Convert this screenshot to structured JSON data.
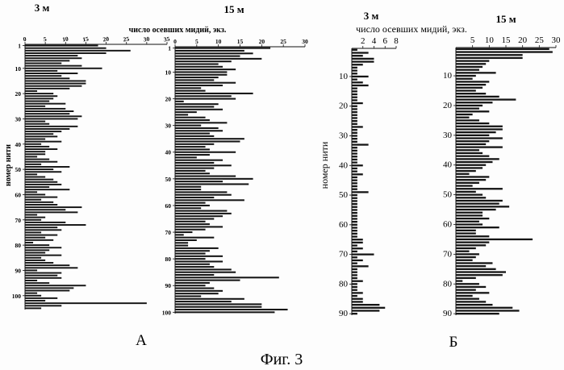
{
  "figure": {
    "caption": "Фиг. 3",
    "groups": [
      {
        "letter": "А",
        "xlabel": "число осевших мидий, экз.",
        "ylabel": "номер нити"
      },
      {
        "letter": "Б",
        "xlabel": "число осевших мидий, экз.",
        "ylabel": "номер нити"
      }
    ]
  },
  "chart_data": [
    {
      "type": "bar",
      "orientation": "horizontal",
      "group": "А",
      "title": "3 м",
      "xlabel": "число осевших мидий, экз.",
      "ylabel": "номер нити",
      "xlim": [
        0,
        35
      ],
      "xticks": [
        0,
        5,
        10,
        15,
        20,
        25,
        30,
        35
      ],
      "ylim": [
        1,
        105
      ],
      "yticks": [
        1,
        10,
        20,
        30,
        40,
        50,
        60,
        70,
        80,
        90,
        100
      ],
      "values": [
        18,
        20,
        26,
        20,
        13,
        14,
        11,
        9,
        14,
        19,
        8,
        13,
        9,
        11,
        15,
        15,
        14,
        11,
        3,
        7,
        8,
        7,
        6,
        10,
        5,
        10,
        12,
        11,
        14,
        13,
        5,
        6,
        13,
        11,
        9,
        7,
        8,
        5,
        9,
        4,
        6,
        8,
        5,
        5,
        3,
        6,
        8,
        4,
        11,
        7,
        9,
        3,
        5,
        7,
        8,
        9,
        6,
        11,
        3,
        5,
        8,
        4,
        7,
        8,
        14,
        10,
        13,
        3,
        5,
        4,
        10,
        15,
        8,
        9,
        4,
        8,
        5,
        7,
        2,
        6,
        9,
        6,
        5,
        9,
        4,
        5,
        7,
        11,
        13,
        3,
        9,
        8,
        9,
        3,
        6,
        15,
        12,
        11,
        3,
        4,
        8,
        5,
        30,
        9,
        4
      ]
    },
    {
      "type": "bar",
      "orientation": "horizontal",
      "group": "А",
      "title": "15 м",
      "xlabel": "",
      "ylabel": "",
      "xlim": [
        0,
        30
      ],
      "xticks": [
        0,
        5,
        10,
        15,
        20,
        25,
        30
      ],
      "ylim": [
        1,
        100
      ],
      "yticks": [
        1,
        10,
        20,
        30,
        40,
        50,
        60,
        70,
        80,
        90,
        100
      ],
      "values": [
        22,
        16,
        18,
        15,
        20,
        13,
        10,
        11,
        14,
        12,
        12,
        10,
        9,
        14,
        11,
        6,
        7,
        18,
        13,
        14,
        2,
        10,
        9,
        11,
        5,
        3,
        7,
        8,
        12,
        6,
        10,
        11,
        8,
        9,
        16,
        15,
        9,
        7,
        8,
        14,
        8,
        5,
        11,
        9,
        13,
        9,
        7,
        8,
        14,
        18,
        11,
        17,
        6,
        6,
        12,
        13,
        9,
        16,
        7,
        8,
        6,
        12,
        13,
        11,
        9,
        7,
        8,
        11,
        7,
        4,
        2,
        9,
        5,
        3,
        3,
        10,
        8,
        7,
        11,
        7,
        11,
        8,
        9,
        13,
        14,
        9,
        24,
        15,
        8,
        7,
        9,
        11,
        10,
        6,
        16,
        13,
        20,
        20,
        26,
        23
      ]
    },
    {
      "type": "bar",
      "orientation": "horizontal",
      "group": "Б",
      "title": "3 м",
      "xlabel": "",
      "ylabel": "",
      "xlim": [
        0,
        8
      ],
      "xticks": [
        2,
        4,
        6,
        8
      ],
      "ylim": [
        1,
        90
      ],
      "yticks": [
        10,
        20,
        30,
        40,
        50,
        60,
        70,
        80,
        90
      ],
      "values": [
        1,
        3,
        2,
        4,
        4,
        2,
        1,
        1,
        1,
        3,
        1,
        2,
        3,
        1,
        1,
        1,
        1,
        1,
        2,
        1,
        1,
        1,
        1,
        1,
        1,
        1,
        2,
        1,
        1,
        1,
        1,
        1,
        3,
        1,
        1,
        1,
        1,
        1,
        1,
        2,
        1,
        1,
        2,
        1,
        1,
        1,
        1,
        1,
        3,
        1,
        1,
        1,
        1,
        1,
        1,
        1,
        1,
        1,
        1,
        1,
        1,
        1,
        1,
        1,
        2,
        2,
        1,
        2,
        1,
        4,
        1,
        2,
        1,
        3,
        1,
        1,
        1,
        1,
        2,
        1,
        1,
        1,
        2,
        1,
        2,
        2,
        5,
        6,
        5,
        1
      ]
    },
    {
      "type": "bar",
      "orientation": "horizontal",
      "group": "Б",
      "title": "15 м",
      "xlabel": "",
      "ylabel": "",
      "xlim": [
        0,
        30
      ],
      "xticks": [
        5,
        10,
        15,
        20,
        25,
        30
      ],
      "ylim": [
        1,
        90
      ],
      "yticks": [
        10,
        20,
        30,
        40,
        50,
        60,
        70,
        80,
        90
      ],
      "values": [
        28,
        29,
        20,
        20,
        10,
        9,
        8,
        7,
        12,
        6,
        5,
        10,
        9,
        8,
        6,
        9,
        13,
        18,
        11,
        8,
        7,
        10,
        5,
        4,
        7,
        10,
        14,
        14,
        12,
        10,
        14,
        10,
        9,
        14,
        7,
        8,
        10,
        13,
        11,
        9,
        8,
        6,
        4,
        10,
        9,
        7,
        5,
        14,
        6,
        8,
        9,
        14,
        13,
        16,
        12,
        8,
        8,
        10,
        7,
        8,
        13,
        6,
        6,
        10,
        23,
        10,
        9,
        6,
        4,
        7,
        6,
        5,
        11,
        9,
        12,
        15,
        14,
        6,
        2,
        7,
        9,
        6,
        10,
        5,
        7,
        9,
        11,
        17,
        19,
        13
      ]
    }
  ]
}
